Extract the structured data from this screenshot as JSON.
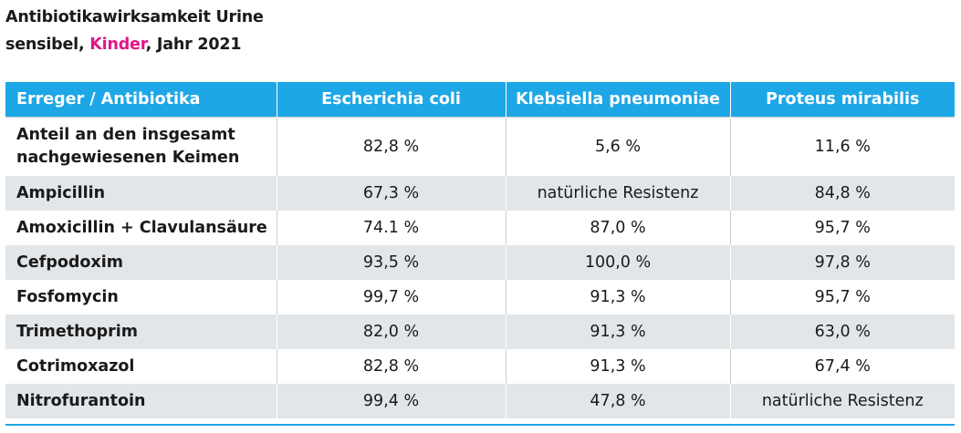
{
  "title": {
    "line1": "Antibiotikawirksamkeit Urine",
    "line2_prefix": "sensibel, ",
    "line2_accent": "Kinder",
    "line2_suffix": ", Jahr 2021",
    "accent_color": "#e0158a"
  },
  "table": {
    "header_color": "#1ea7e6",
    "headers": [
      "Erreger / Antibiotika",
      "Escherichia coli",
      "Klebsiella pneumoniae",
      "Proteus mirabilis"
    ],
    "rows": [
      {
        "label": "Anteil an den insgesamt nachgewiesenen Keimen",
        "values": [
          "82,8 %",
          "5,6 %",
          "11,6 %"
        ]
      },
      {
        "label": "Ampicillin",
        "values": [
          "67,3 %",
          "natürliche Resistenz",
          "84,8 %"
        ]
      },
      {
        "label": "Amoxicillin + Clavulansäure",
        "values": [
          "74.1 %",
          "87,0 %",
          "95,7 %"
        ]
      },
      {
        "label": "Cefpodoxim",
        "values": [
          "93,5 %",
          "100,0 %",
          "97,8 %"
        ]
      },
      {
        "label": "Fosfomycin",
        "values": [
          "99,7 %",
          "91,3 %",
          "95,7 %"
        ]
      },
      {
        "label": "Trimethoprim",
        "values": [
          "82,0 %",
          "91,3 %",
          "63,0 %"
        ]
      },
      {
        "label": "Cotrimoxazol",
        "values": [
          "82,8 %",
          "91,3 %",
          "67,4 %"
        ]
      },
      {
        "label": "Nitrofurantoin",
        "values": [
          "99,4 %",
          "47,8 %",
          "natürliche Resistenz"
        ]
      }
    ]
  }
}
